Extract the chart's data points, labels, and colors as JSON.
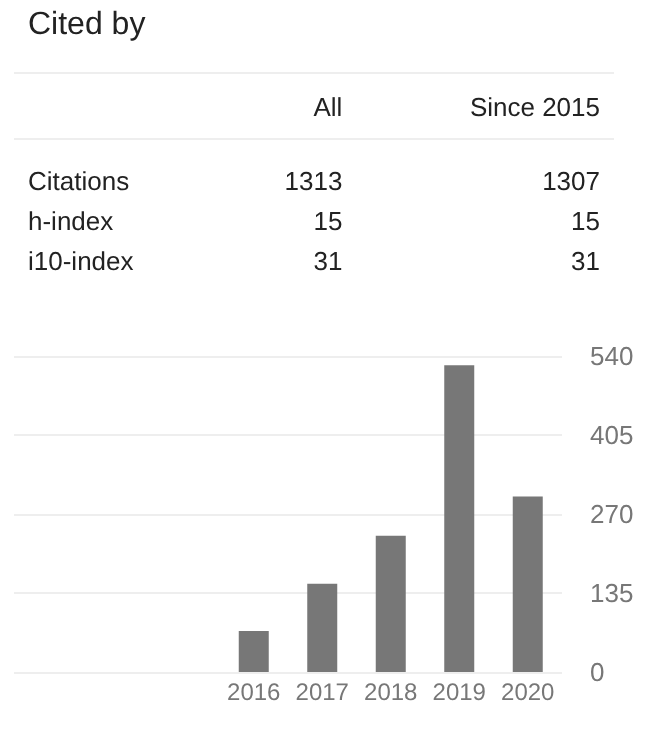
{
  "chart_data": {
    "type": "bar",
    "title": "Cited by",
    "annotations": [
      "All",
      "Since 2015",
      "Citations",
      "1313",
      "1307",
      "h-index",
      "15",
      "15",
      "i10-index",
      "31",
      "31"
    ],
    "categories": [
      null,
      null,
      null,
      "2016",
      "2017",
      "2018",
      "2019",
      "2020"
    ],
    "values": [
      null,
      null,
      null,
      70,
      151,
      233,
      524,
      300
    ],
    "color": "#777777",
    "ylim": [
      0,
      540
    ],
    "yticks": [
      0,
      135,
      270,
      405,
      540
    ],
    "grid": "y"
  }
}
